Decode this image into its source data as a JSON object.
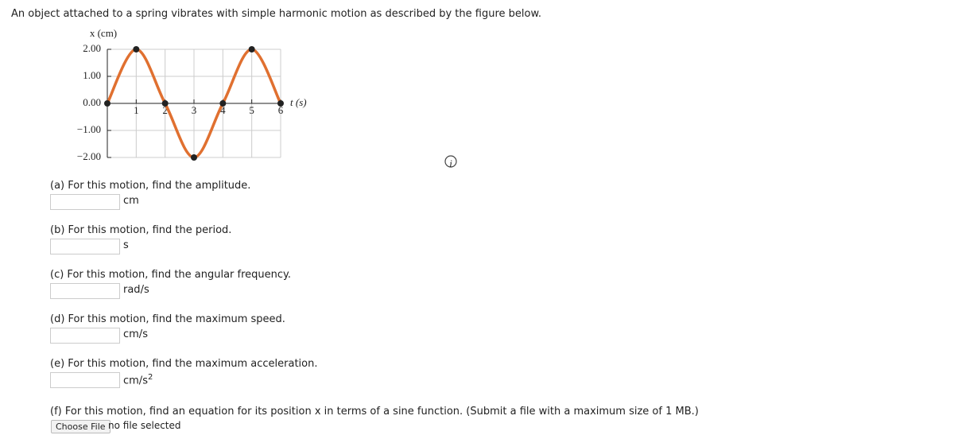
{
  "intro": "An object attached to a spring vibrates with simple harmonic motion as described by the figure below.",
  "chart_data": {
    "type": "line",
    "ylabel": "x (cm)",
    "xlabel": "t (s)",
    "x": [
      0,
      1,
      2,
      3,
      4,
      5,
      6
    ],
    "values": [
      0,
      2,
      0,
      -2,
      0,
      2,
      0
    ],
    "color": "#e07030",
    "xlim": [
      0,
      6
    ],
    "ylim": [
      -2,
      2
    ],
    "xticks": [
      1,
      2,
      3,
      4,
      5,
      6
    ],
    "yticks": [
      {
        "value": 2,
        "label": "2.00"
      },
      {
        "value": 1,
        "label": "1.00"
      },
      {
        "value": 0,
        "label": "0.00"
      },
      {
        "value": -1,
        "label": "−1.00"
      },
      {
        "value": -2,
        "label": "−2.00"
      }
    ],
    "grid": true
  },
  "questions": [
    {
      "prompt": "(a) For this motion, find the amplitude.",
      "unit": "cm"
    },
    {
      "prompt": "(b) For this motion, find the period.",
      "unit": "s"
    },
    {
      "prompt": "(c) For this motion, find the angular frequency.",
      "unit": "rad/s"
    },
    {
      "prompt": "(d) For this motion, find the maximum speed.",
      "unit": "cm/s"
    },
    {
      "prompt": "(e) For this motion, find the maximum acceleration.",
      "unit": "cm/s",
      "unit_superscript": "2"
    }
  ],
  "file_question": {
    "prompt": "(f) For this motion, find an equation for its position x in terms of a sine function. (Submit a file with a maximum size of 1 MB.)",
    "button": "Choose File",
    "status": "no file selected"
  }
}
